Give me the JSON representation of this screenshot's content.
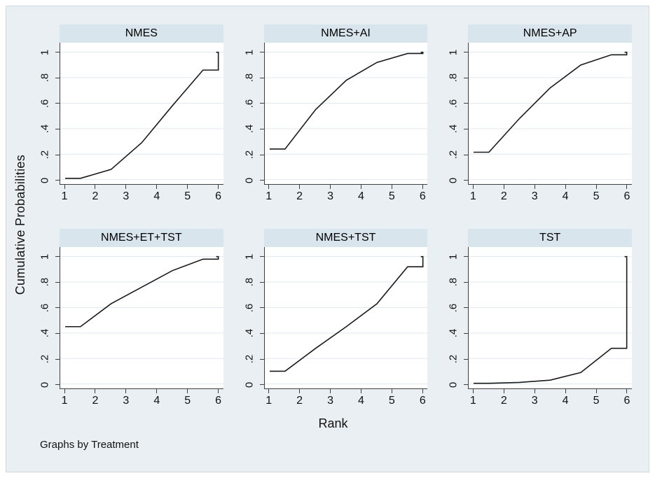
{
  "figure": {
    "ylabel": "Cumulative Probabilities",
    "xlabel": "Rank",
    "note": "Graphs by Treatment",
    "y_tick_labels": [
      "0",
      ".2",
      ".4",
      ".6",
      ".8",
      "1"
    ],
    "x_tick_labels": [
      "1",
      "2",
      "3",
      "4",
      "5",
      "6"
    ],
    "colors": {
      "canvas_background": "#e9eff3",
      "canvas_border": "#ccd9e0",
      "panel_title_bar": "#d9e5ec",
      "plot_background": "#ffffff",
      "gridline": "#e0e9ef",
      "axis": "#3f3f3f",
      "curve": "#1a1a1a",
      "text": "#000000"
    }
  },
  "chart_data": {
    "type": "line",
    "layout": "2x3 small multiples, by-graph (Stata style)",
    "title": "",
    "xlabel": "Rank",
    "ylabel": "Cumulative Probabilities",
    "xlim": [
      0.84,
      6.16
    ],
    "ylim": [
      -0.035,
      1.075
    ],
    "x_ticks": [
      1,
      2,
      3,
      4,
      5,
      6
    ],
    "y_ticks": [
      0,
      0.2,
      0.4,
      0.6,
      0.8,
      1
    ],
    "grid": "horizontal gridlines at y ticks",
    "legend": "none",
    "panels": [
      {
        "title": "NMES",
        "points": [
          [
            1,
            0.01
          ],
          [
            1.5,
            0.01
          ],
          [
            2.5,
            0.08
          ],
          [
            3.5,
            0.29
          ],
          [
            4.5,
            0.58
          ],
          [
            5.5,
            0.86
          ],
          [
            6,
            0.86
          ],
          [
            6,
            1
          ],
          [
            5.93,
            1
          ]
        ]
      },
      {
        "title": "NMES+AI",
        "points": [
          [
            1,
            0.24
          ],
          [
            1.5,
            0.24
          ],
          [
            2.5,
            0.55
          ],
          [
            3.5,
            0.78
          ],
          [
            4.5,
            0.92
          ],
          [
            5.5,
            0.99
          ],
          [
            6,
            0.99
          ],
          [
            6,
            1
          ],
          [
            5.93,
            1
          ]
        ]
      },
      {
        "title": "NMES+AP",
        "points": [
          [
            1,
            0.215
          ],
          [
            1.5,
            0.215
          ],
          [
            2.5,
            0.48
          ],
          [
            3.5,
            0.72
          ],
          [
            4.5,
            0.9
          ],
          [
            5.5,
            0.98
          ],
          [
            6,
            0.98
          ],
          [
            6,
            1
          ],
          [
            5.93,
            1
          ]
        ]
      },
      {
        "title": "NMES+ET+TST",
        "points": [
          [
            1,
            0.45
          ],
          [
            1.5,
            0.45
          ],
          [
            2.5,
            0.63
          ],
          [
            3.5,
            0.76
          ],
          [
            4.5,
            0.89
          ],
          [
            5.5,
            0.98
          ],
          [
            6,
            0.98
          ],
          [
            6,
            1
          ],
          [
            5.93,
            1
          ]
        ]
      },
      {
        "title": "NMES+TST",
        "points": [
          [
            1,
            0.1
          ],
          [
            1.5,
            0.1
          ],
          [
            2.5,
            0.28
          ],
          [
            3.5,
            0.45
          ],
          [
            4.5,
            0.63
          ],
          [
            5.5,
            0.92
          ],
          [
            6,
            0.92
          ],
          [
            6,
            1
          ],
          [
            5.93,
            1
          ]
        ]
      },
      {
        "title": "TST",
        "points": [
          [
            1,
            0.005
          ],
          [
            1.5,
            0.005
          ],
          [
            2.5,
            0.012
          ],
          [
            3.5,
            0.03
          ],
          [
            4.5,
            0.09
          ],
          [
            5.5,
            0.28
          ],
          [
            6,
            0.28
          ],
          [
            6,
            1
          ],
          [
            5.93,
            1
          ]
        ]
      }
    ]
  }
}
